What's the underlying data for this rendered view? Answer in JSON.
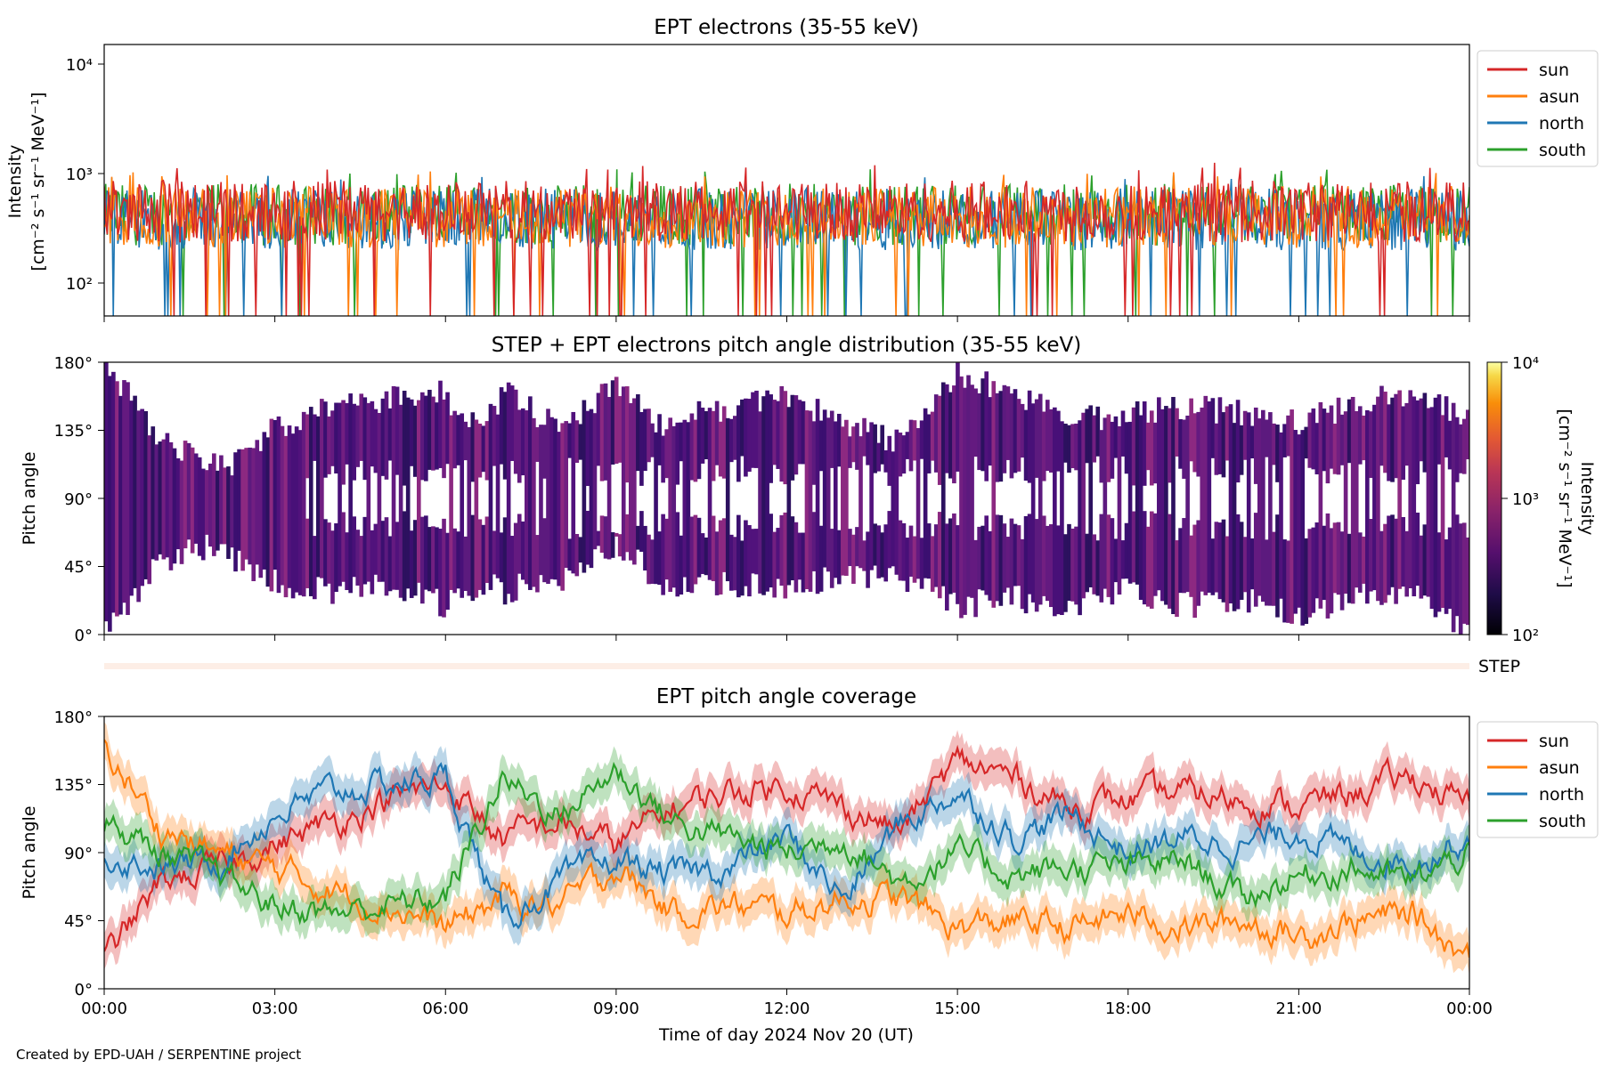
{
  "colors": {
    "sun": "#d62728",
    "asun": "#ff7f0e",
    "north": "#1f77b4",
    "south": "#2ca02c"
  },
  "footer": "Created by EPD-UAH / SERPENTINE project",
  "step_label": "STEP",
  "chart_data": [
    {
      "type": "line",
      "title": "EPT electrons (35-55 keV)",
      "xlabel": "",
      "ylabel": "Intensity",
      "ylabel_units": "[cm⁻² s⁻¹ sr⁻¹ MeV⁻¹]",
      "yscale": "log",
      "ylim": [
        50,
        15000
      ],
      "yticks": [
        "10²",
        "10³",
        "10⁴"
      ],
      "xlim": [
        "00:00",
        "24:00"
      ],
      "legend": "outside-right",
      "grid": false,
      "series": [
        {
          "name": "sun",
          "typical": 450,
          "min": 50,
          "max": 1250
        },
        {
          "name": "asun",
          "typical": 400,
          "min": 50,
          "max": 1050
        },
        {
          "name": "north",
          "typical": 380,
          "min": 50,
          "max": 1000
        },
        {
          "name": "south",
          "typical": 420,
          "min": 50,
          "max": 1100
        }
      ]
    },
    {
      "type": "heatmap",
      "title": "STEP + EPT electrons pitch angle distribution (35-55 keV)",
      "ylabel": "Pitch angle",
      "ylim": [
        0,
        180
      ],
      "yticks": [
        "0°",
        "45°",
        "90°",
        "135°",
        "180°"
      ],
      "xlim": [
        "00:00",
        "24:00"
      ],
      "colorbar": {
        "label": "Intensity",
        "units": "[cm⁻² s⁻¹ sr⁻¹ MeV⁻¹]",
        "scale": "log",
        "range": [
          100,
          10000
        ],
        "ticks": [
          "10²",
          "10³",
          "10⁴"
        ],
        "colormap": "inferno"
      },
      "typical_intensity": 300
    },
    {
      "type": "line",
      "title": "EPT pitch angle coverage",
      "xlabel": "Time of day 2024 Nov 20 (UT)",
      "ylabel": "Pitch angle",
      "ylim": [
        0,
        180
      ],
      "yticks": [
        "0°",
        "45°",
        "90°",
        "135°",
        "180°"
      ],
      "xticks": [
        "00:00",
        "03:00",
        "06:00",
        "09:00",
        "12:00",
        "15:00",
        "18:00",
        "21:00",
        "00:00"
      ],
      "legend": "outside-right",
      "grid": false,
      "x_hours": [
        0,
        1,
        2,
        3,
        4,
        5,
        6,
        7,
        8,
        9,
        10,
        11,
        12,
        13,
        14,
        15,
        16,
        17,
        18,
        19,
        20,
        21,
        22,
        23,
        24
      ],
      "series": [
        {
          "name": "sun",
          "values": [
            20,
            70,
            80,
            95,
            110,
            125,
            135,
            100,
            110,
            95,
            120,
            130,
            135,
            120,
            105,
            150,
            140,
            120,
            125,
            130,
            125,
            120,
            130,
            140,
            120
          ]
        },
        {
          "name": "asun",
          "values": [
            160,
            105,
            90,
            80,
            65,
            55,
            40,
            60,
            55,
            80,
            50,
            55,
            50,
            60,
            60,
            40,
            45,
            40,
            50,
            40,
            45,
            35,
            45,
            50,
            20
          ]
        },
        {
          "name": "north",
          "values": [
            90,
            80,
            85,
            115,
            130,
            135,
            140,
            45,
            70,
            85,
            75,
            80,
            100,
            60,
            110,
            130,
            100,
            115,
            90,
            100,
            95,
            105,
            90,
            85,
            100
          ]
        },
        {
          "name": "south",
          "values": [
            110,
            90,
            75,
            55,
            50,
            55,
            60,
            140,
            115,
            145,
            110,
            100,
            90,
            100,
            70,
            90,
            75,
            80,
            80,
            85,
            60,
            75,
            80,
            70,
            90
          ]
        }
      ],
      "band_halfwidth_deg": 12
    }
  ]
}
